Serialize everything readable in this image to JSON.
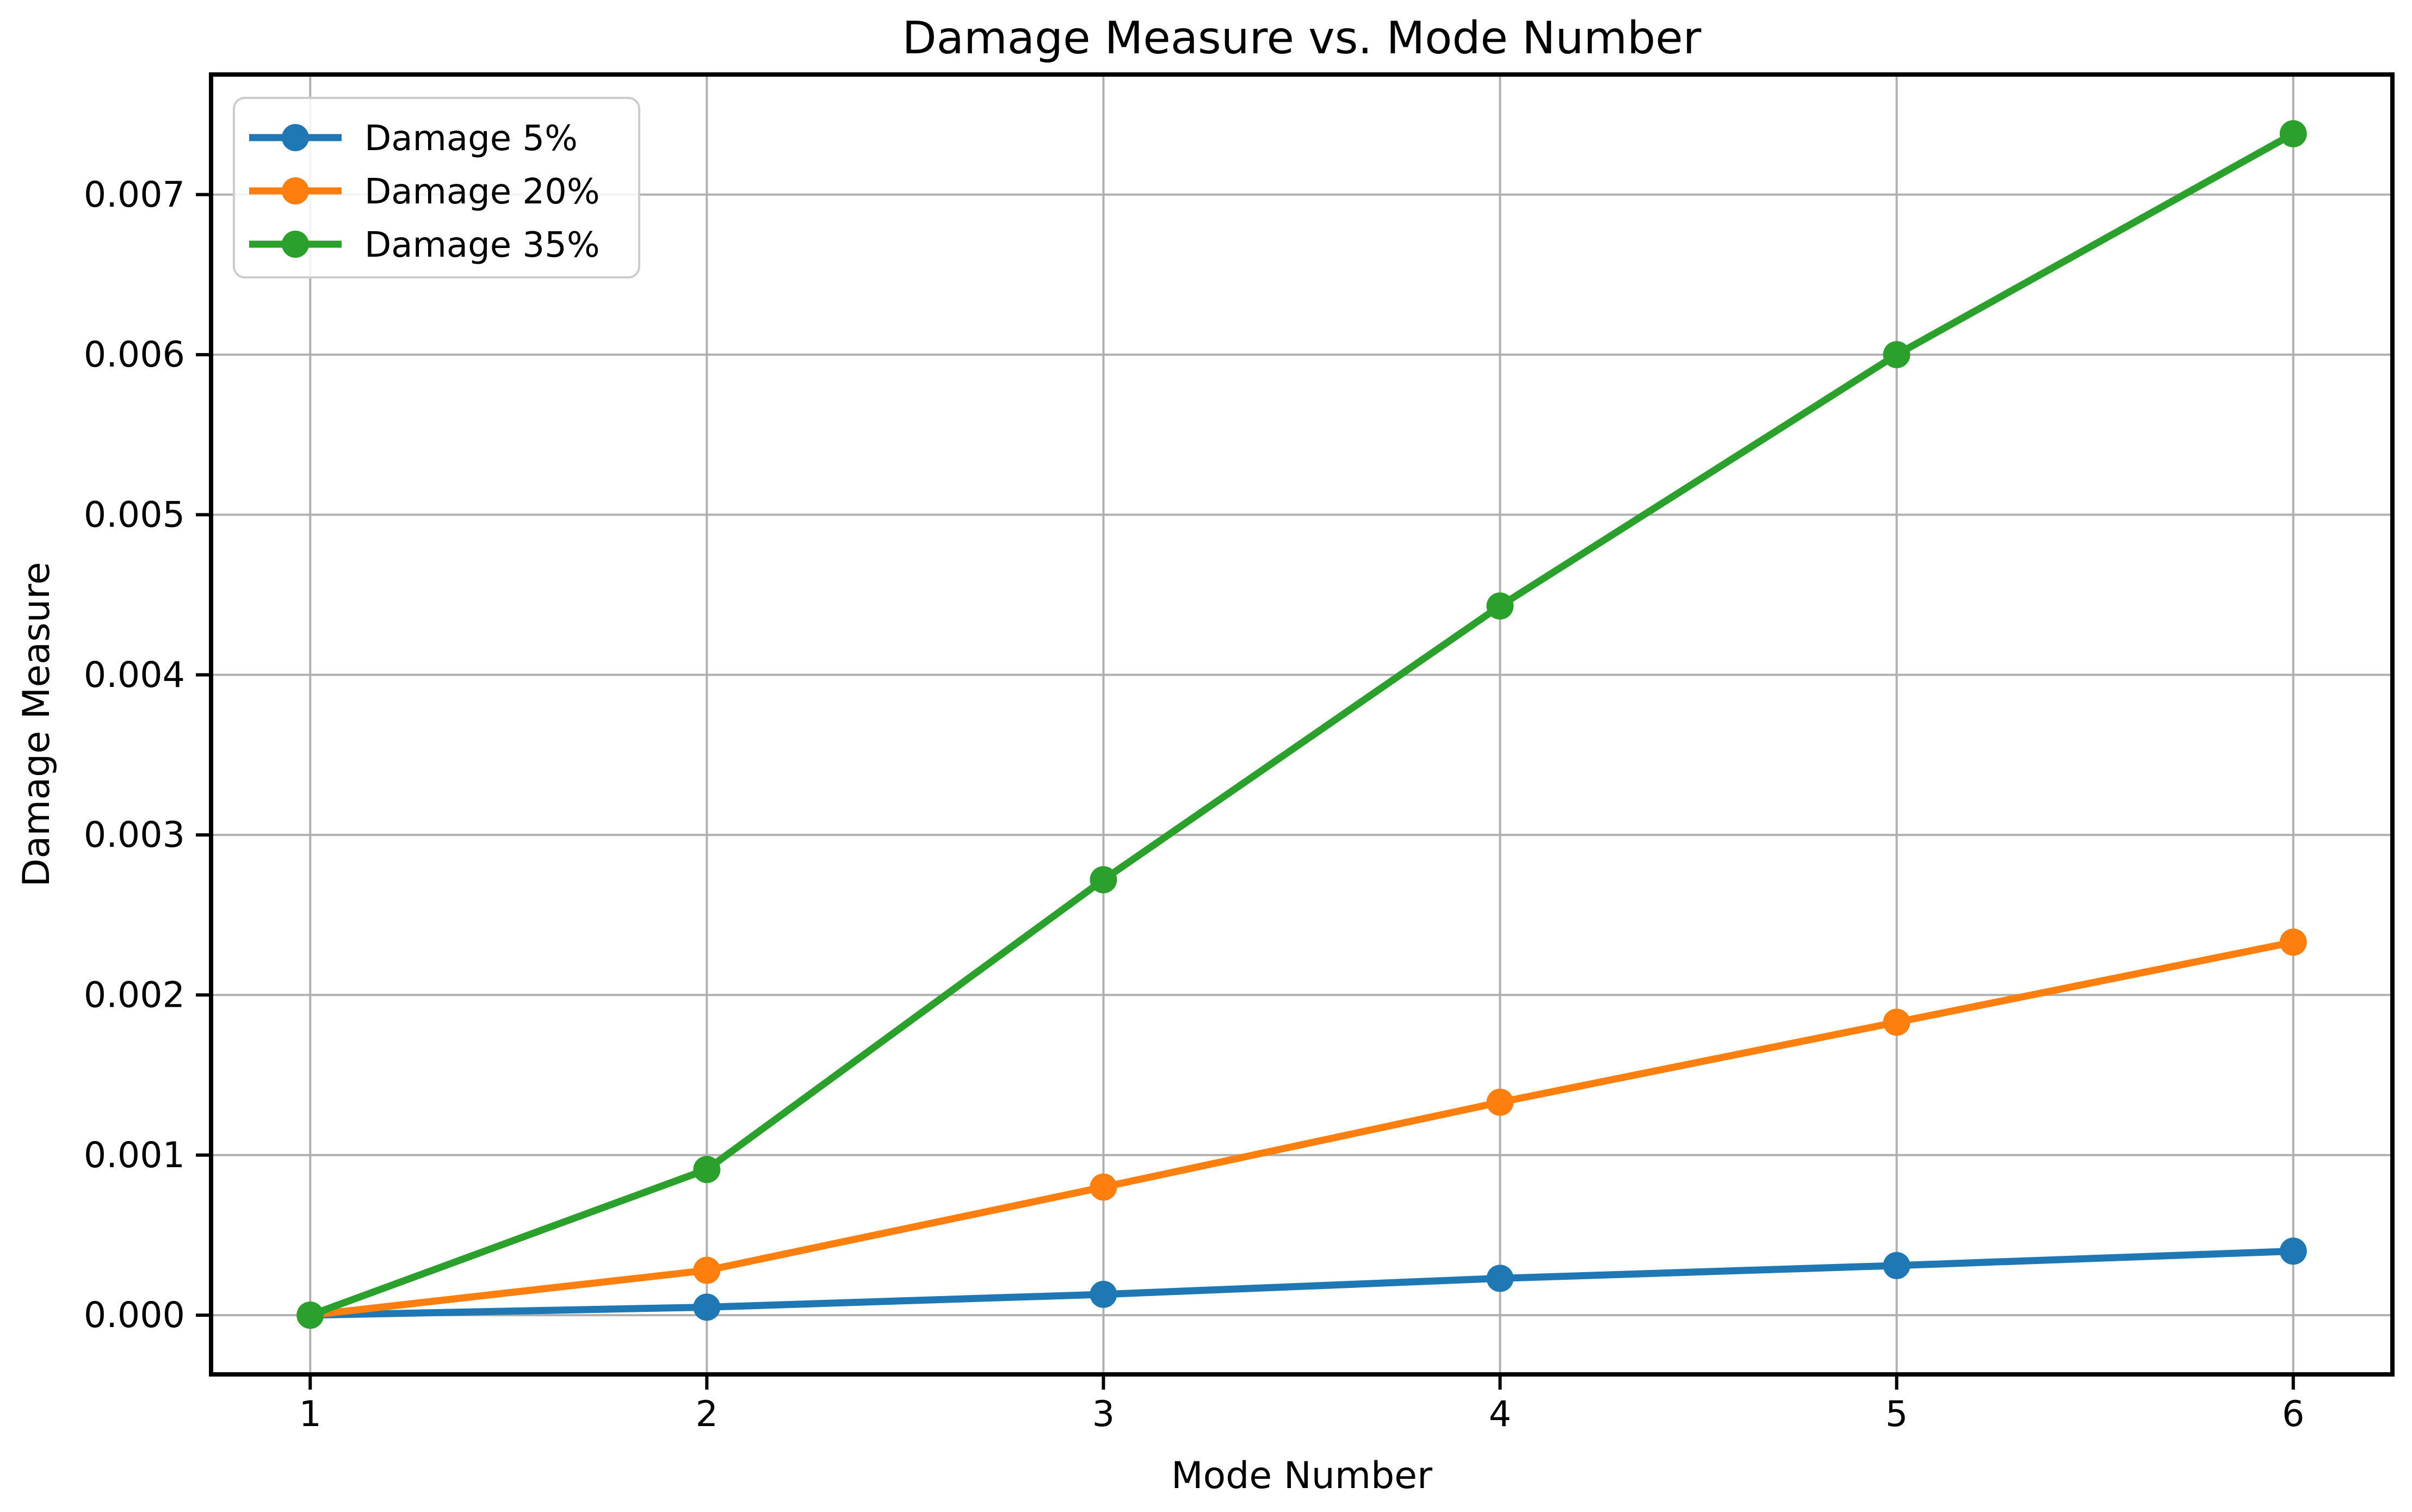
{
  "figure": {
    "background": "#ffffff",
    "grid_color": "#b0b0b0",
    "spine_color": "#000000",
    "text_color": "#000000",
    "legend_border_color": "#cccccc"
  },
  "chart_data": {
    "type": "line",
    "title": "Damage Measure vs. Mode Number",
    "xlabel": "Mode Number",
    "ylabel": "Damage Measure",
    "x": [
      1,
      2,
      3,
      4,
      5,
      6
    ],
    "series": [
      {
        "name": "Damage 5%",
        "color": "#1f77b4",
        "values": [
          0.0,
          5e-05,
          0.00013,
          0.00023,
          0.00031,
          0.0004
        ]
      },
      {
        "name": "Damage 20%",
        "color": "#ff7f0e",
        "values": [
          0.0,
          0.00028,
          0.0008,
          0.00133,
          0.00183,
          0.00233
        ]
      },
      {
        "name": "Damage 35%",
        "color": "#2ca02c",
        "values": [
          0.0,
          0.00091,
          0.00272,
          0.00443,
          0.006,
          0.00738
        ]
      }
    ],
    "xtick_labels": [
      "1",
      "2",
      "3",
      "4",
      "5",
      "6"
    ],
    "xtick_values": [
      1,
      2,
      3,
      4,
      5,
      6
    ],
    "ytick_labels": [
      "0.000",
      "0.001",
      "0.002",
      "0.003",
      "0.004",
      "0.005",
      "0.006",
      "0.007"
    ],
    "ytick_values": [
      0.0,
      0.001,
      0.002,
      0.003,
      0.004,
      0.005,
      0.006,
      0.007
    ],
    "xlim": [
      0.75,
      6.25
    ],
    "ylim": [
      -0.00037,
      0.00775
    ],
    "grid": true,
    "legend_position": "upper-left",
    "marker": "circle"
  }
}
